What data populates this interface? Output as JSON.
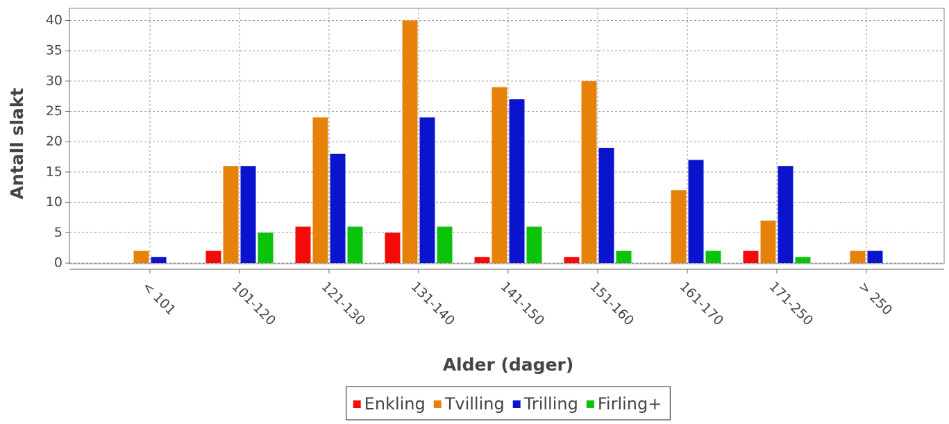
{
  "chart_data": {
    "type": "bar",
    "x_label": "Alder (dager)",
    "y_label": "Antall slakt",
    "categories": [
      "< 101",
      "101-120",
      "121-130",
      "131-140",
      "141-150",
      "151-160",
      "161-170",
      "171-250",
      "> 250"
    ],
    "series": [
      {
        "name": "Enkling",
        "color": "#f50a0a",
        "values": [
          0,
          2,
          6,
          5,
          1,
          1,
          0,
          2,
          0
        ]
      },
      {
        "name": "Tvilling",
        "color": "#e6820a",
        "values": [
          2,
          16,
          24,
          40,
          29,
          30,
          12,
          7,
          2
        ]
      },
      {
        "name": "Trilling",
        "color": "#0a14cd",
        "values": [
          1,
          16,
          18,
          24,
          27,
          19,
          17,
          16,
          2
        ]
      },
      {
        "name": "Firling+",
        "color": "#0ac30a",
        "values": [
          0,
          5,
          6,
          6,
          6,
          2,
          2,
          1,
          0
        ]
      }
    ],
    "ylim": [
      0,
      42
    ],
    "yticks": [
      0,
      5,
      10,
      15,
      20,
      25,
      30,
      35,
      40
    ],
    "grid": true,
    "legend": "bottom"
  }
}
